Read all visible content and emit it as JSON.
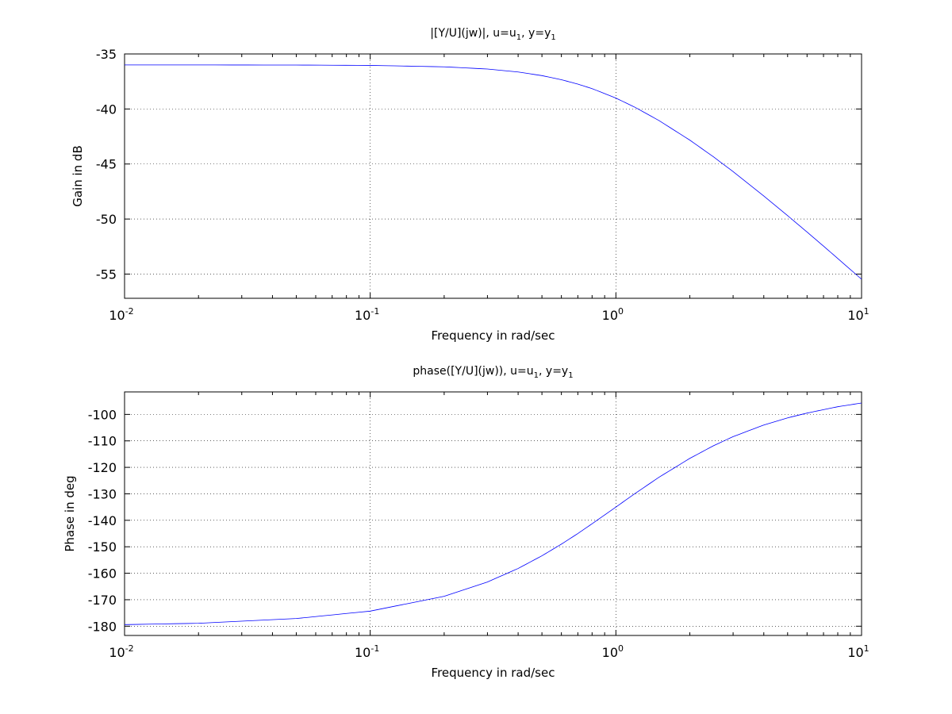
{
  "chart_data": [
    {
      "type": "line",
      "title": {
        "text": "|[Y/U](jw)|, u=u",
        "sub1": "1",
        "mid": ", y=y",
        "sub2": "1"
      },
      "xlabel": "Frequency in rad/sec",
      "ylabel": "Gain in dB",
      "xscale": "log",
      "xlim": [
        0.01,
        10
      ],
      "ylim": [
        -57.2,
        -35
      ],
      "xticks": [
        {
          "base": "10",
          "exp": "-2"
        },
        {
          "base": "10",
          "exp": "-1"
        },
        {
          "base": "10",
          "exp": "0"
        },
        {
          "base": "10",
          "exp": "1"
        }
      ],
      "yticks": [
        "-35",
        "-40",
        "-45",
        "-50",
        "-55"
      ],
      "yticks_values": [
        -35,
        -40,
        -45,
        -50,
        -55
      ],
      "grid": true,
      "series": [
        {
          "color": "#0000ff",
          "x": [
            0.01,
            0.02,
            0.05,
            0.1,
            0.2,
            0.3,
            0.4,
            0.5,
            0.6,
            0.7,
            0.8,
            1.0,
            1.2,
            1.5,
            2.0,
            2.5,
            3.0,
            4.0,
            5.0,
            6.0,
            7.0,
            8.0,
            10.0
          ],
          "y": [
            -36.0,
            -36.0,
            -36.01,
            -36.04,
            -36.17,
            -36.37,
            -36.64,
            -36.97,
            -37.34,
            -37.74,
            -38.15,
            -39.01,
            -39.86,
            -41.06,
            -42.83,
            -44.36,
            -45.69,
            -47.91,
            -49.69,
            -51.18,
            -52.46,
            -53.58,
            -55.47
          ]
        }
      ]
    },
    {
      "type": "line",
      "title": {
        "text": "phase([Y/U](jw)), u=u",
        "sub1": "1",
        "mid": ", y=y",
        "sub2": "1"
      },
      "xlabel": "Frequency in rad/sec",
      "ylabel": "Phase in deg",
      "xscale": "log",
      "xlim": [
        0.01,
        10
      ],
      "ylim": [
        -183.5,
        -91.5
      ],
      "xticks": [
        {
          "base": "10",
          "exp": "-2"
        },
        {
          "base": "10",
          "exp": "-1"
        },
        {
          "base": "10",
          "exp": "0"
        },
        {
          "base": "10",
          "exp": "1"
        }
      ],
      "yticks": [
        "-100",
        "-110",
        "-120",
        "-130",
        "-140",
        "-150",
        "-160",
        "-170",
        "-180"
      ],
      "yticks_values": [
        -100,
        -110,
        -120,
        -130,
        -140,
        -150,
        -160,
        -170,
        -180
      ],
      "grid": true,
      "series": [
        {
          "color": "#0000ff",
          "x": [
            0.01,
            0.02,
            0.05,
            0.1,
            0.2,
            0.3,
            0.4,
            0.5,
            0.6,
            0.7,
            0.8,
            1.0,
            1.2,
            1.5,
            2.0,
            2.5,
            3.0,
            4.0,
            5.0,
            6.0,
            7.0,
            8.0,
            10.0
          ],
          "y": [
            -179.4,
            -178.9,
            -177.1,
            -174.3,
            -168.7,
            -163.3,
            -158.2,
            -153.4,
            -149.0,
            -145.0,
            -141.3,
            -135.0,
            -129.8,
            -123.7,
            -116.6,
            -111.8,
            -108.4,
            -104.0,
            -101.3,
            -99.5,
            -98.2,
            -97.1,
            -95.7
          ]
        }
      ]
    }
  ]
}
